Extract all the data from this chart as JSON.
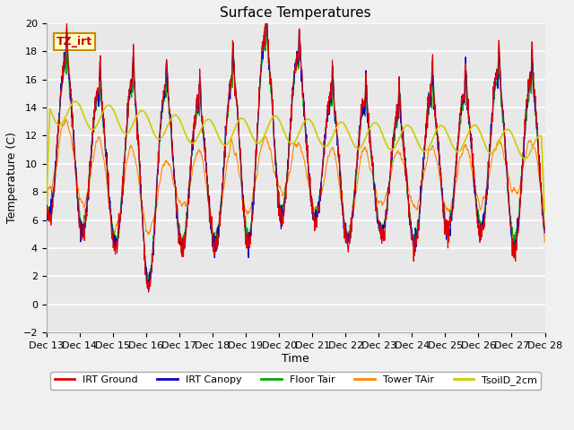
{
  "title": "Surface Temperatures",
  "xlabel": "Time",
  "ylabel": "Temperature (C)",
  "ylim": [
    -2,
    20
  ],
  "annotation_text": "TZ_irt",
  "annotation_bg": "#ffffcc",
  "annotation_border": "#cc8800",
  "fig_bg": "#f0f0f0",
  "plot_bg": "#e8e8e8",
  "grid_color": "white",
  "xtick_labels": [
    "Dec 13",
    "Dec 14",
    "Dec 15",
    "Dec 16",
    "Dec 17",
    "Dec 18",
    "Dec 19",
    "Dec 20",
    "Dec 21",
    "Dec 22",
    "Dec 23",
    "Dec 24",
    "Dec 25",
    "Dec 26",
    "Dec 27",
    "Dec 28"
  ],
  "legend_entries": [
    {
      "label": "IRT Ground",
      "color": "#dd0000"
    },
    {
      "label": "IRT Canopy",
      "color": "#0000cc"
    },
    {
      "label": "Floor Tair",
      "color": "#00aa00"
    },
    {
      "label": "Tower TAir",
      "color": "#ff8800"
    },
    {
      "label": "TsoilD_2cm",
      "color": "#cccc00"
    }
  ],
  "title_fontsize": 11,
  "axis_label_fontsize": 9,
  "tick_fontsize": 8
}
